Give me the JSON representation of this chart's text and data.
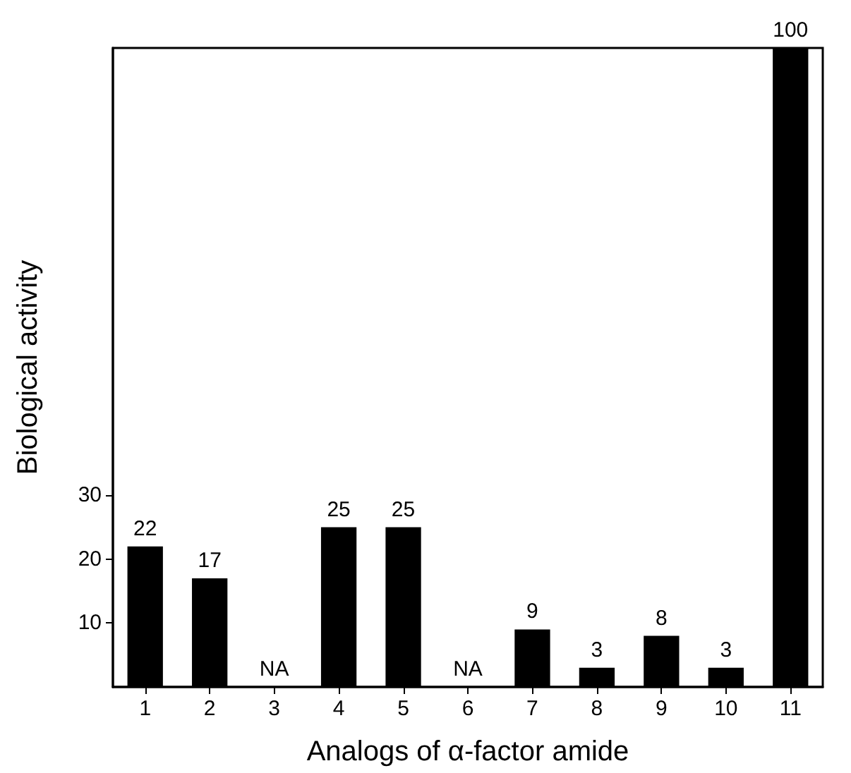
{
  "chart_data": {
    "type": "bar",
    "xlabel": "Analogs of α-factor amide",
    "ylabel": "Biological activity",
    "categories": [
      "1",
      "2",
      "3",
      "4",
      "5",
      "6",
      "7",
      "8",
      "9",
      "10",
      "11"
    ],
    "values": [
      22,
      17,
      null,
      25,
      25,
      null,
      9,
      3,
      8,
      3,
      100
    ],
    "value_labels": [
      "22",
      "17",
      "NA",
      "25",
      "25",
      "NA",
      "9",
      "3",
      "8",
      "3",
      "100"
    ],
    "color": "#000000",
    "ylim": [
      0,
      100
    ],
    "yticks": [
      10,
      20,
      30
    ],
    "grid": false
  }
}
